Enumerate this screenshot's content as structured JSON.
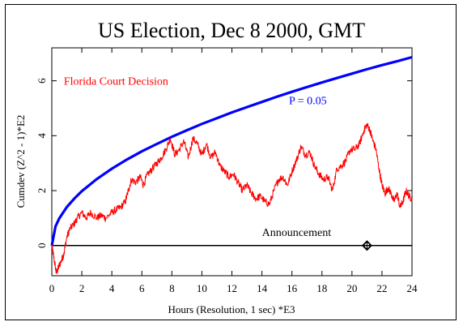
{
  "chart_data": {
    "type": "line",
    "title": "US Election, Dec 8 2000, GMT",
    "xlabel": "Hours (Resolution, 1 sec)   *E3",
    "ylabel": "Cumdev (Z^2 - 1)*E2",
    "xlim": [
      0,
      24
    ],
    "ylim": [
      -1.1,
      7.2
    ],
    "x_ticks": [
      0,
      2,
      4,
      6,
      8,
      10,
      12,
      14,
      16,
      18,
      20,
      22,
      24
    ],
    "y_ticks": [
      0,
      2,
      4,
      6
    ],
    "colors": {
      "cumdev": "#ff0000",
      "p_envelope": "#0000ff",
      "zero_line": "#000000",
      "axes": "#000000"
    },
    "series": [
      {
        "role": "p_envelope",
        "x": [
          0,
          0.25,
          0.5,
          1,
          1.5,
          2,
          3,
          4,
          5,
          6,
          7,
          8,
          9,
          10,
          11,
          12,
          13,
          14,
          15,
          16,
          17,
          18,
          19,
          20,
          21,
          22,
          23,
          24
        ],
        "values": [
          0,
          0.7,
          0.99,
          1.4,
          1.71,
          1.98,
          2.42,
          2.8,
          3.13,
          3.43,
          3.7,
          3.96,
          4.2,
          4.43,
          4.64,
          4.85,
          5.04,
          5.23,
          5.42,
          5.6,
          5.77,
          5.94,
          6.1,
          6.26,
          6.42,
          6.57,
          6.71,
          6.86
        ]
      },
      {
        "role": "cumdev",
        "x": [
          0,
          0.15,
          0.3,
          0.45,
          0.6,
          0.8,
          1.0,
          1.2,
          1.5,
          1.7,
          2.0,
          2.3,
          2.6,
          3.0,
          3.3,
          3.6,
          4.0,
          4.3,
          4.6,
          4.9,
          5.1,
          5.3,
          5.6,
          5.9,
          6.1,
          6.4,
          6.7,
          7.0,
          7.3,
          7.6,
          7.9,
          8.2,
          8.5,
          8.8,
          9.1,
          9.4,
          9.7,
          10.0,
          10.3,
          10.6,
          10.9,
          11.2,
          11.5,
          11.8,
          12.1,
          12.4,
          12.7,
          13.0,
          13.3,
          13.6,
          13.9,
          14.2,
          14.5,
          14.8,
          15.1,
          15.4,
          15.7,
          16.0,
          16.3,
          16.6,
          16.9,
          17.2,
          17.5,
          17.8,
          18.1,
          18.4,
          18.7,
          19.0,
          19.3,
          19.6,
          19.9,
          20.2,
          20.5,
          20.8,
          21.0,
          21.2,
          21.4,
          21.6,
          21.8,
          22.0,
          22.2,
          22.4,
          22.6,
          22.8,
          23.0,
          23.2,
          23.4,
          23.6,
          23.8,
          24.0
        ],
        "values": [
          0,
          -0.5,
          -1.0,
          -0.8,
          -0.6,
          -0.3,
          0.3,
          0.6,
          0.8,
          1.0,
          1.2,
          1.0,
          1.2,
          1.0,
          1.1,
          1.0,
          1.2,
          1.3,
          1.4,
          1.6,
          2.0,
          2.4,
          2.3,
          2.5,
          2.2,
          2.6,
          2.8,
          3.0,
          3.2,
          3.5,
          3.9,
          3.3,
          3.5,
          3.8,
          3.2,
          3.9,
          3.7,
          3.3,
          3.7,
          3.2,
          3.4,
          2.9,
          2.7,
          2.5,
          2.6,
          2.3,
          2.0,
          2.2,
          1.9,
          1.7,
          1.8,
          1.6,
          1.5,
          2.0,
          2.4,
          2.5,
          2.2,
          2.7,
          3.1,
          3.6,
          3.3,
          3.4,
          2.9,
          2.6,
          2.4,
          2.5,
          2.0,
          2.8,
          2.9,
          3.1,
          3.5,
          3.5,
          3.7,
          4.2,
          4.4,
          4.2,
          3.8,
          3.5,
          2.8,
          2.2,
          1.9,
          2.1,
          1.9,
          1.6,
          1.9,
          1.4,
          1.6,
          2.0,
          1.8,
          1.7
        ]
      }
    ],
    "annotations": [
      {
        "text": "Florida Court Decision",
        "x": 0.8,
        "y": 5.85,
        "color": "#ff0000"
      },
      {
        "text": "P = 0.05",
        "x": 15.8,
        "y": 5.15,
        "color": "#0000ff"
      },
      {
        "text": "Announcement",
        "x": 14.0,
        "y": 0.35,
        "color": "#000000"
      }
    ],
    "markers": [
      {
        "label": "announcement-marker",
        "x": 21.0,
        "y": 0
      }
    ]
  }
}
